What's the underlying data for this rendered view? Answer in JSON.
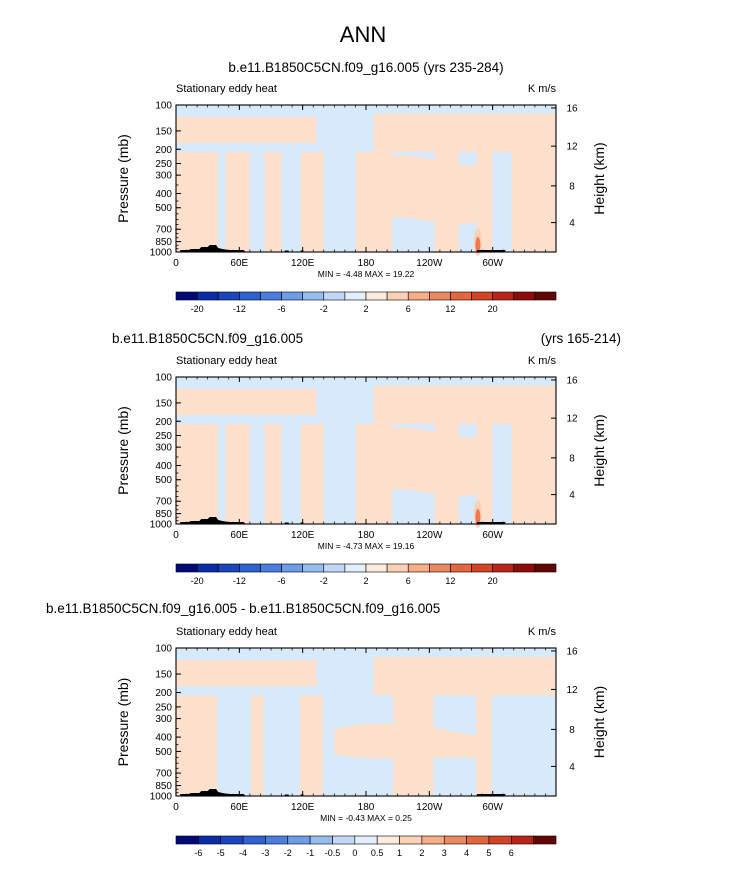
{
  "page": {
    "title": "ANN"
  },
  "colors": {
    "light_blue": "#d6eafb",
    "light_peach": "#fde0cc",
    "mid_blue": "#a9cdf2",
    "orange_peak": "#ee7a4a",
    "terrain": "#000000"
  },
  "chart_data": [
    {
      "type": "heatmap",
      "title": "b.e11.B1850C5CN.f09_g16.005 (yrs 235-284)",
      "title_right": "",
      "left_string": "Stationary eddy heat",
      "units": "K m/s",
      "ylabel": "Pressure (mb)",
      "ylabel_right": "Height (km)",
      "x_ticks": [
        "0",
        "60E",
        "120E",
        "180",
        "120W",
        "60W"
      ],
      "y_ticks": [
        "100",
        "150",
        "200",
        "250",
        "300",
        "400",
        "500",
        "700",
        "850",
        "1000"
      ],
      "y_ticks_right": [
        "16",
        "12",
        "8",
        "4"
      ],
      "stats": "MIN = -4.48   MAX = 19.22",
      "xlim": [
        0,
        360
      ],
      "ylim": [
        1000,
        100
      ],
      "colorbar_labels": [
        "-20",
        "-12",
        "-6",
        "-2",
        "2",
        "6",
        "12",
        "20"
      ],
      "colorbar_colors": [
        "#040a7c",
        "#0c2ba6",
        "#1b45bf",
        "#2e62d4",
        "#4a7fe0",
        "#6e9ce8",
        "#97bbef",
        "#c1d8f6",
        "#e3eefb",
        "#fdebdd",
        "#fbd0b6",
        "#f6ad88",
        "#ee8a61",
        "#e4673d",
        "#d24426",
        "#b72415",
        "#8c0c0b",
        "#660303"
      ],
      "max_value_location": {
        "lon": 290,
        "pressure": 1000,
        "value": 19.22
      }
    },
    {
      "type": "heatmap",
      "title": "b.e11.B1850C5CN.f09_g16.005",
      "title_right": "(yrs 165-214)",
      "left_string": "Stationary eddy heat",
      "units": "K m/s",
      "ylabel": "Pressure (mb)",
      "ylabel_right": "Height (km)",
      "x_ticks": [
        "0",
        "60E",
        "120E",
        "180",
        "120W",
        "60W"
      ],
      "y_ticks": [
        "100",
        "150",
        "200",
        "250",
        "300",
        "400",
        "500",
        "700",
        "850",
        "1000"
      ],
      "y_ticks_right": [
        "16",
        "12",
        "8",
        "4"
      ],
      "stats": "MIN = -4.73   MAX = 19.16",
      "xlim": [
        0,
        360
      ],
      "ylim": [
        1000,
        100
      ],
      "colorbar_labels": [
        "-20",
        "-12",
        "-6",
        "-2",
        "2",
        "6",
        "12",
        "20"
      ],
      "colorbar_colors": [
        "#040a7c",
        "#0c2ba6",
        "#1b45bf",
        "#2e62d4",
        "#4a7fe0",
        "#6e9ce8",
        "#97bbef",
        "#c1d8f6",
        "#e3eefb",
        "#fdebdd",
        "#fbd0b6",
        "#f6ad88",
        "#ee8a61",
        "#e4673d",
        "#d24426",
        "#b72415",
        "#8c0c0b",
        "#660303"
      ],
      "max_value_location": {
        "lon": 290,
        "pressure": 1000,
        "value": 19.16
      }
    },
    {
      "type": "heatmap",
      "title": "b.e11.B1850C5CN.f09_g16.005 - b.e11.B1850C5CN.f09_g16.005",
      "title_right": "",
      "left_string": "Stationary eddy heat",
      "units": "K m/s",
      "ylabel": "Pressure (mb)",
      "ylabel_right": "Height (km)",
      "x_ticks": [
        "0",
        "60E",
        "120E",
        "180",
        "120W",
        "60W"
      ],
      "y_ticks": [
        "100",
        "150",
        "200",
        "250",
        "300",
        "400",
        "500",
        "700",
        "850",
        "1000"
      ],
      "y_ticks_right": [
        "16",
        "12",
        "8",
        "4"
      ],
      "stats": "MIN = -0.43   MAX =  0.25",
      "xlim": [
        0,
        360
      ],
      "ylim": [
        1000,
        100
      ],
      "colorbar_labels": [
        "-6",
        "-5",
        "-4",
        "-3",
        "-2",
        "-1",
        "-0.5",
        "0",
        "0.5",
        "1",
        "2",
        "3",
        "4",
        "5",
        "6"
      ],
      "colorbar_colors": [
        "#040a7c",
        "#0c2ba6",
        "#1b45bf",
        "#2e62d4",
        "#4a7fe0",
        "#6e9ce8",
        "#97bbef",
        "#c1d8f6",
        "#e3eefb",
        "#fdebdd",
        "#fbd0b6",
        "#f6ad88",
        "#ee8a61",
        "#e4673d",
        "#d24426",
        "#b72415",
        "#660303"
      ]
    }
  ]
}
